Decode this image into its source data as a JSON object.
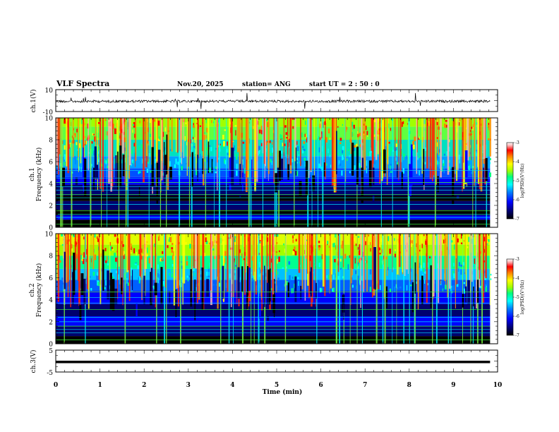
{
  "header": {
    "title": "VLF Spectra",
    "date": "Nov.20, 2025",
    "station": "station= ANG",
    "start": "start  UT =   2  : 50 : 0"
  },
  "chart_data": [
    {
      "type": "line",
      "name": "ch1-waveform",
      "ylabel": "ch.1(V)",
      "ylim": [
        -10,
        10
      ],
      "ytick_labels": [
        "10",
        "-10"
      ],
      "xlim": [
        0,
        10
      ]
    },
    {
      "type": "heatmap",
      "name": "ch1-spectrogram",
      "ylabel": "ch.1\nFrequency  (kHz)",
      "ylim": [
        0,
        10
      ],
      "ytick_labels": [
        "0",
        "2",
        "4",
        "6",
        "8",
        "10"
      ],
      "xlim": [
        0,
        9.83
      ],
      "colorbar": {
        "label": "log(PSD)(V²/Hz)",
        "range": [
          -7,
          -3
        ],
        "tick_labels": [
          "-3",
          "-4",
          "-5",
          "-6",
          "-7"
        ]
      }
    },
    {
      "type": "heatmap",
      "name": "ch2-spectrogram",
      "ylabel": "ch.2\nFrequency  (kHz)",
      "ylim": [
        0,
        10
      ],
      "ytick_labels": [
        "0",
        "2",
        "4",
        "6",
        "8",
        "10"
      ],
      "xlim": [
        0,
        9.83
      ],
      "colorbar": {
        "label": "log(PSD)(V²/Hz)",
        "range": [
          -7,
          -3
        ],
        "tick_labels": [
          "-3",
          "-4",
          "-5",
          "-6",
          "-7"
        ]
      }
    },
    {
      "type": "line",
      "name": "ch3-waveform",
      "ylabel": "ch.3(V)",
      "ylim": [
        -5,
        5
      ],
      "ytick_labels": [
        "5",
        "-5"
      ],
      "constant_value": -0.4,
      "xlim": [
        0,
        9.83
      ]
    }
  ],
  "xaxis": {
    "label": "Time  (min)",
    "range": [
      0,
      10
    ],
    "tick_labels": [
      "0",
      "1",
      "2",
      "3",
      "4",
      "5",
      "6",
      "7",
      "8",
      "9",
      "10"
    ]
  },
  "colors": {
    "colormap": [
      "#000000",
      "#00006e",
      "#0000ff",
      "#0080ff",
      "#00ffff",
      "#00ff80",
      "#a0ff00",
      "#ffff00",
      "#ff8000",
      "#ff0000",
      "#ffb0b0",
      "#ffffff"
    ]
  }
}
